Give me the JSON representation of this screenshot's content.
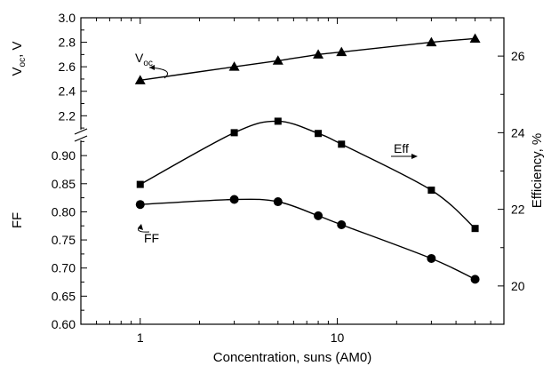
{
  "chart_data": {
    "type": "line",
    "xlabel": "Concentration, suns (AM0)",
    "x_scale": "log",
    "xlim": [
      0.5,
      70
    ],
    "x_ticks": [
      1,
      10
    ],
    "x_tick_labels": [
      "1",
      "10"
    ],
    "left_axis": {
      "label_main": "V",
      "label_sub": "oc",
      "label_rest": ", V",
      "label_ff": "FF",
      "voc_range": [
        2.05,
        3.0
      ],
      "voc_ticks": [
        2.2,
        2.4,
        2.6,
        2.8,
        3.0
      ],
      "voc_tick_labels": [
        "2.2",
        "2.4",
        "2.6",
        "2.8",
        "3.0"
      ],
      "ff_range": [
        0.6,
        0.935
      ],
      "ff_ticks": [
        0.6,
        0.65,
        0.7,
        0.75,
        0.8,
        0.85,
        0.9
      ],
      "ff_tick_labels": [
        "0.60",
        "0.65",
        "0.70",
        "0.75",
        "0.80",
        "0.85",
        "0.90"
      ],
      "broken": true
    },
    "right_axis": {
      "label": "Efficiency, %",
      "ylim": [
        19,
        27
      ],
      "ticks": [
        20,
        22,
        24,
        26
      ],
      "tick_labels": [
        "20",
        "22",
        "24",
        "26"
      ]
    },
    "series": [
      {
        "axis": "voc",
        "marker": "triangle",
        "annotation_main": "V",
        "annotation_sub": "oc",
        "x": [
          1,
          3,
          5,
          8,
          10.5,
          30,
          50
        ],
        "y": [
          2.49,
          2.6,
          2.65,
          2.7,
          2.72,
          2.8,
          2.83
        ]
      },
      {
        "axis": "efficiency",
        "marker": "square",
        "annotation": "Eff",
        "x": [
          1,
          3,
          5,
          8,
          10.5,
          30,
          50
        ],
        "y": [
          22.65,
          24.0,
          24.3,
          23.98,
          23.7,
          22.5,
          21.5
        ]
      },
      {
        "axis": "ff",
        "marker": "circle",
        "annotation": "FF",
        "x": [
          1,
          3,
          5,
          8,
          10.5,
          30,
          50
        ],
        "y": [
          0.813,
          0.822,
          0.818,
          0.793,
          0.777,
          0.717,
          0.68
        ]
      }
    ]
  }
}
